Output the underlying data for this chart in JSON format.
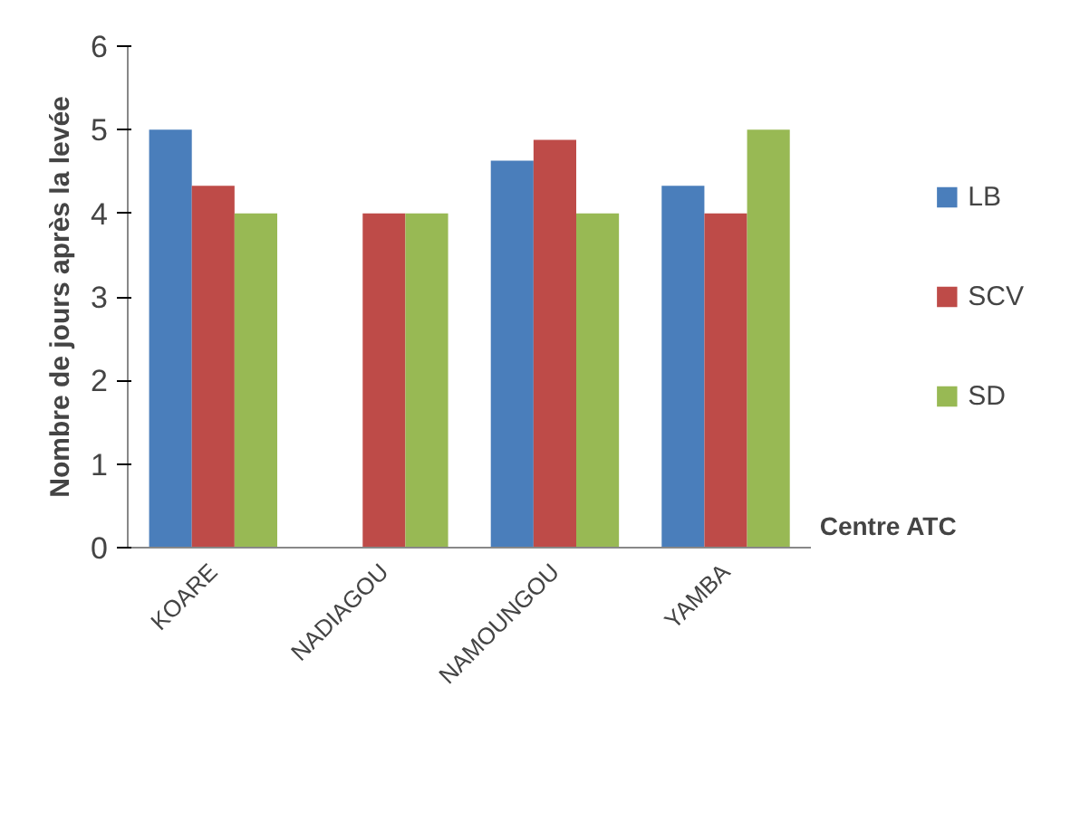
{
  "chart_data": {
    "type": "bar",
    "xlabel": "Centre ATC",
    "ylabel": "Nombre de jours après la levée",
    "categories": [
      "KOARE",
      "NADIAGOU",
      "NAMOUNGOU",
      "YAMBA"
    ],
    "series": [
      {
        "name": "LB",
        "color": "#4a7ebb",
        "values": [
          5,
          null,
          4.63,
          4.33
        ]
      },
      {
        "name": "SCV",
        "color": "#be4b48",
        "values": [
          4.33,
          4,
          4.88,
          4
        ]
      },
      {
        "name": "SD",
        "color": "#98b954",
        "values": [
          4,
          4,
          4,
          5
        ]
      }
    ],
    "ylim": [
      0,
      6
    ],
    "yticks": [
      0,
      1,
      2,
      3,
      4,
      5,
      6
    ],
    "grid": false,
    "legend": "right"
  }
}
